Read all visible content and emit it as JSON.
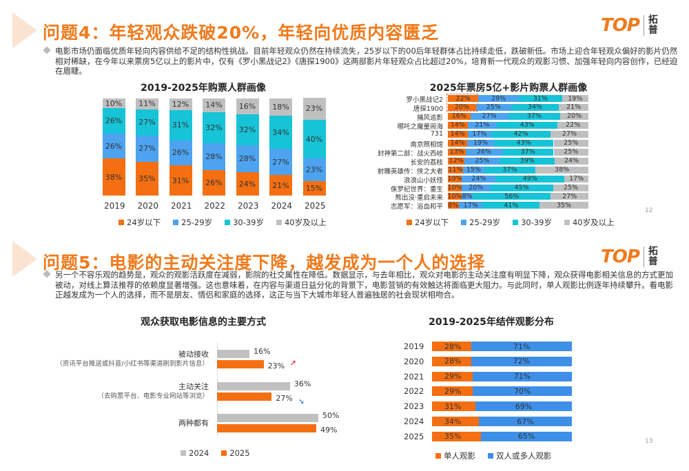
{
  "colors": {
    "accent": "#f07a1c",
    "under24": "#f36f12",
    "age25_29": "#4da3f0",
    "age30_39": "#17c3d6",
    "age40plus": "#c0c0c0",
    "solo": "#f36f12",
    "group": "#3d8fe8",
    "y2024": "#c0c0c0",
    "y2025": "#f36f12"
  },
  "logo": {
    "text": "TOP",
    "cn": "拓普"
  },
  "slide1": {
    "title": "问题4：年轻观众跌破20%，年轻向优质内容匮乏",
    "paragraph": "电影市场仍面临优质年轻向内容供给不足的结构性挑战。目前年轻观众仍然在持续流失，25岁以下的00后年轻群体占比持续走低，跌破新低。市场上迎合年轻观众偏好的影片仍然相对稀缺，在今年以来票房5亿以上的影片中，仅有《罗小黑战记2》《唐探1900》这两部影片年轻观众占比超过20%，培育新一代观众的观影习惯、加强年轻向内容创作，已经迫在眉睫。",
    "page": "12"
  },
  "slide2": {
    "title": "问题5：电影的主动关注度下降，越发成为一个人的选择",
    "paragraph": "另一个不容乐观的趋势是，观众的观影活跃度在减弱，影院的社交属性在降低。数据显示，与去年相比，观众对电影的主动关注度有明显下降，观众获得电影相关信息的方式更加被动，对线上算法推荐的依赖度显著增强。这也意味着，在内容与渠道日益分化的背景下，电影营销的有效触达将面临更大阻力。与此同时，单人观影比例逐年持续攀升。看电影正越发成为一个人的选择，而不是朋友、情侣和家庭的选择，这正与当下大城市年轻人普遍独居的社会现状相吻合。",
    "page": "13"
  },
  "chart_data": [
    {
      "type": "bar",
      "stacked": true,
      "title": "2019-2025年购票人群画像",
      "categories": [
        "2019",
        "2020",
        "2021",
        "2022",
        "2023",
        "2024",
        "2025"
      ],
      "series": [
        {
          "name": "24岁以下",
          "values": [
            38,
            35,
            31,
            26,
            24,
            21,
            15
          ]
        },
        {
          "name": "25-29岁",
          "values": [
            26,
            27,
            26,
            28,
            28,
            27,
            23
          ]
        },
        {
          "name": "30-39岁",
          "values": [
            26,
            27,
            31,
            32,
            32,
            34,
            40
          ]
        },
        {
          "name": "40岁及以上",
          "values": [
            10,
            11,
            12,
            14,
            16,
            18,
            23
          ]
        }
      ],
      "ylabel": "",
      "xlabel": "",
      "legend": "bottom",
      "unit": "%"
    },
    {
      "type": "bar",
      "stacked": true,
      "orientation": "horizontal",
      "title": "2025年票房5亿+影片购票人群画像",
      "categories": [
        "罗小黑战记2",
        "唐探1900",
        "捕风追影",
        "哪吒之魔童闹海",
        "731",
        "南京照相馆",
        "封神第二部：战火西岐",
        "长安的荔枝",
        "射雕英雄传：侠之大者",
        "浪浪山小妖怪",
        "侏罗纪世界：重生",
        "熊出没·重启未来",
        "志愿军：浴血和平"
      ],
      "series": [
        {
          "name": "24岁以下",
          "values": [
            22,
            20,
            16,
            14,
            14,
            14,
            13,
            12,
            11,
            10,
            10,
            10,
            8
          ]
        },
        {
          "name": "25-29岁",
          "values": [
            29,
            25,
            27,
            21,
            17,
            19,
            26,
            25,
            15,
            24,
            20,
            8,
            17
          ]
        },
        {
          "name": "30-39岁",
          "values": [
            31,
            34,
            37,
            43,
            42,
            43,
            37,
            39,
            37,
            49,
            45,
            56,
            41
          ]
        },
        {
          "name": "40岁及以上",
          "values": [
            19,
            21,
            20,
            22,
            27,
            25,
            25,
            24,
            38,
            17,
            25,
            27,
            35
          ]
        }
      ],
      "highlighted": [
        "罗小黑战记2",
        "唐探1900"
      ],
      "legend": "bottom",
      "unit": "%"
    },
    {
      "type": "bar",
      "orientation": "horizontal",
      "title": "观众获取电影信息的主要方式",
      "categories": [
        {
          "label": "被动接收",
          "sub": "（资讯平台推送或抖音/小红书等渠道刷到影片信息）",
          "trend": "up"
        },
        {
          "label": "主动关注",
          "sub": "（去购票平台、电影专业网站等浏览）",
          "trend": "down"
        },
        {
          "label": "两种都有",
          "sub": "",
          "trend": ""
        }
      ],
      "series": [
        {
          "name": "2024",
          "values": [
            16,
            36,
            50
          ]
        },
        {
          "name": "2025",
          "values": [
            23,
            27,
            49
          ]
        }
      ],
      "legend": "bottom",
      "unit": "%"
    },
    {
      "type": "bar",
      "stacked": true,
      "orientation": "horizontal",
      "title": "2019-2025年结伴观影分布",
      "categories": [
        "2019",
        "2020",
        "2021",
        "2022",
        "2023",
        "2024",
        "2025"
      ],
      "series": [
        {
          "name": "单人观影",
          "values": [
            28,
            28,
            29,
            29,
            31,
            34,
            35
          ]
        },
        {
          "name": "双人或多人观影",
          "values": [
            71,
            72,
            71,
            70,
            69,
            67,
            65
          ]
        }
      ],
      "legend": "bottom",
      "unit": "%"
    }
  ]
}
